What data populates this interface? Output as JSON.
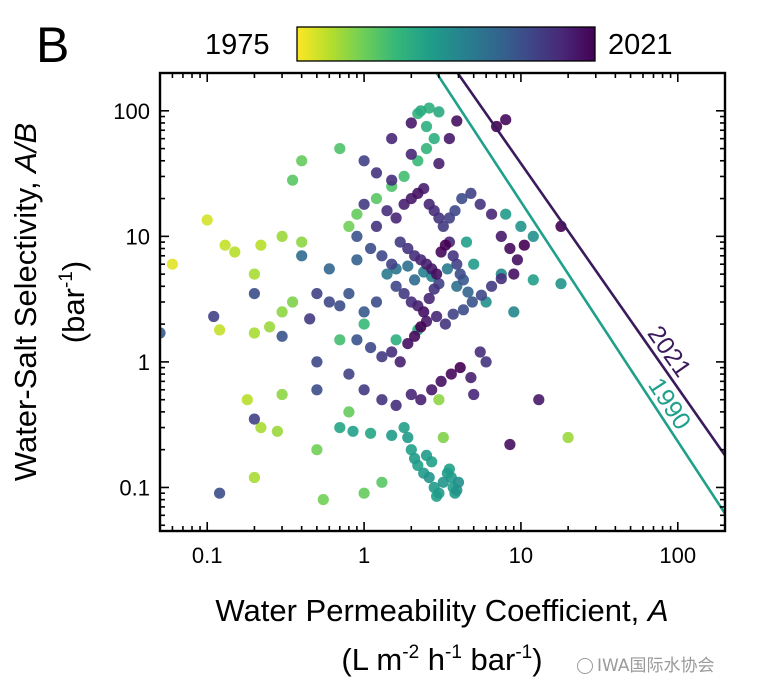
{
  "panel_label": "B",
  "watermark": "IWA国际水协会",
  "chart_data": {
    "type": "scatter",
    "title": "",
    "xlabel_parts": {
      "main": "Water Permeability Coefficient, ",
      "italic": "A"
    },
    "xlabel_units": {
      "a": "(L m",
      "b": "-2",
      "c": " h",
      "d": "-1",
      "e": " bar",
      "f": "-1",
      "g": ")"
    },
    "ylabel_parts": {
      "main": "Water-Salt Selectivity, ",
      "italic": "A/B"
    },
    "ylabel_units": {
      "a": "(bar",
      "b": "-1",
      "c": ")"
    },
    "x_scale": "log",
    "y_scale": "log",
    "xlim": [
      0.05,
      200
    ],
    "ylim": [
      0.045,
      200
    ],
    "x_ticks": [
      0.1,
      1,
      10,
      100
    ],
    "x_tick_labels": [
      "0.1",
      "1",
      "10",
      "100"
    ],
    "y_ticks": [
      0.1,
      1,
      10,
      100
    ],
    "y_tick_labels": [
      "0.1",
      "1",
      "10",
      "100"
    ],
    "colorbar": {
      "min_label": "1975",
      "max_label": "2021",
      "min": 1975,
      "max": 2021,
      "colormap": "viridis-reversed"
    },
    "colormap_stops": [
      "#fde725",
      "#b5de2b",
      "#6ece58",
      "#35b779",
      "#1f9e89",
      "#26828e",
      "#31688e",
      "#3e4989",
      "#482878",
      "#440154"
    ],
    "upper_bounds": [
      {
        "name": "2021",
        "label": "2021",
        "color": "#3a1a5c",
        "x": [
          3.95,
          200
        ],
        "y": [
          200,
          0.18
        ]
      },
      {
        "name": "1990",
        "label": "1990",
        "color": "#20a08a",
        "x": [
          2.9,
          200
        ],
        "y": [
          200,
          0.062
        ]
      }
    ],
    "points": [
      [
        0.06,
        6.0,
        1977
      ],
      [
        0.1,
        13.5,
        1978
      ],
      [
        0.13,
        8.5,
        1979
      ],
      [
        0.15,
        7.5,
        1980
      ],
      [
        0.2,
        5.0,
        1981
      ],
      [
        0.22,
        8.5,
        1980
      ],
      [
        0.3,
        10.0,
        1982
      ],
      [
        0.4,
        9.0,
        1983
      ],
      [
        0.12,
        1.8,
        1979
      ],
      [
        0.2,
        1.7,
        1981
      ],
      [
        0.25,
        1.9,
        1982
      ],
      [
        0.3,
        2.5,
        1983
      ],
      [
        0.35,
        3.0,
        1984
      ],
      [
        0.18,
        0.5,
        1980
      ],
      [
        0.22,
        0.3,
        1981
      ],
      [
        0.28,
        0.28,
        1982
      ],
      [
        0.12,
        0.09,
        2010
      ],
      [
        0.2,
        0.12,
        1981
      ],
      [
        0.55,
        0.08,
        1985
      ],
      [
        1.0,
        0.09,
        1986
      ],
      [
        1.3,
        0.11,
        1987
      ],
      [
        0.8,
        0.4,
        1986
      ],
      [
        0.5,
        0.2,
        1985
      ],
      [
        0.3,
        0.55,
        1983
      ],
      [
        0.8,
        12.0,
        1985
      ],
      [
        0.9,
        15.0,
        1986
      ],
      [
        1.2,
        20.0,
        1987
      ],
      [
        1.5,
        25.0,
        1988
      ],
      [
        1.8,
        30.0,
        1989
      ],
      [
        2.2,
        40.0,
        1990
      ],
      [
        2.5,
        50.0,
        1991
      ],
      [
        2.8,
        60.0,
        1992
      ],
      [
        2.3,
        100.0,
        1993
      ],
      [
        2.6,
        105.0,
        1992
      ],
      [
        3.0,
        98.0,
        1993
      ],
      [
        2.2,
        95.0,
        1991
      ],
      [
        2.5,
        75.0,
        1992
      ],
      [
        0.7,
        50.0,
        1988
      ],
      [
        0.4,
        40.0,
        1986
      ],
      [
        0.35,
        28.0,
        1987
      ],
      [
        1.0,
        2.0,
        1990
      ],
      [
        1.6,
        1.5,
        1992
      ],
      [
        2.2,
        1.8,
        1993
      ],
      [
        0.7,
        1.5,
        1989
      ],
      [
        0.7,
        0.3,
        1994
      ],
      [
        0.85,
        0.28,
        1995
      ],
      [
        1.1,
        0.27,
        1994
      ],
      [
        1.5,
        0.26,
        1996
      ],
      [
        1.8,
        0.3,
        1995
      ],
      [
        1.9,
        0.25,
        1996
      ],
      [
        2.0,
        0.2,
        1995
      ],
      [
        2.1,
        0.17,
        1996
      ],
      [
        2.2,
        0.15,
        1995
      ],
      [
        2.4,
        0.13,
        1996
      ],
      [
        2.6,
        0.12,
        1997
      ],
      [
        2.8,
        0.1,
        1996
      ],
      [
        2.9,
        0.085,
        1995
      ],
      [
        3.0,
        0.09,
        1996
      ],
      [
        3.2,
        0.11,
        1997
      ],
      [
        3.4,
        0.13,
        1996
      ],
      [
        3.5,
        0.14,
        1995
      ],
      [
        3.6,
        0.12,
        1996
      ],
      [
        3.7,
        0.1,
        1995
      ],
      [
        3.8,
        0.09,
        1996
      ],
      [
        3.9,
        0.095,
        1997
      ],
      [
        4.0,
        0.11,
        1998
      ],
      [
        2.5,
        0.18,
        1996
      ],
      [
        2.7,
        0.16,
        1995
      ],
      [
        4.5,
        9.0,
        1995
      ],
      [
        5.0,
        6.0,
        1996
      ],
      [
        6.0,
        3.0,
        1998
      ],
      [
        7.5,
        5.0,
        1999
      ],
      [
        9.0,
        2.5,
        2000
      ],
      [
        10.0,
        12.0,
        1997
      ],
      [
        12.0,
        10.0,
        1998
      ],
      [
        20.0,
        0.25,
        1982
      ],
      [
        3.2,
        0.25,
        1984
      ],
      [
        3.0,
        0.5,
        1983
      ],
      [
        12.0,
        4.5,
        1995
      ],
      [
        18.0,
        4.2,
        1997
      ],
      [
        8.0,
        15.0,
        1996
      ],
      [
        1.0,
        40.0,
        2012
      ],
      [
        1.2,
        32.0,
        2014
      ],
      [
        1.5,
        28.0,
        2015
      ],
      [
        2.0,
        45.0,
        2016
      ],
      [
        3.0,
        38.0,
        2017
      ],
      [
        3.5,
        60.0,
        2018
      ],
      [
        3.9,
        83.0,
        2019
      ],
      [
        2.0,
        80.0,
        2018
      ],
      [
        1.5,
        60.0,
        2016
      ],
      [
        1.0,
        18.0,
        2013
      ],
      [
        1.2,
        12.0,
        2014
      ],
      [
        1.4,
        16.0,
        2015
      ],
      [
        1.6,
        14.0,
        2016
      ],
      [
        1.8,
        18.0,
        2017
      ],
      [
        2.0,
        20.0,
        2018
      ],
      [
        2.2,
        22.0,
        2019
      ],
      [
        2.4,
        24.0,
        2017
      ],
      [
        2.6,
        18.0,
        2016
      ],
      [
        2.8,
        16.0,
        2015
      ],
      [
        3.0,
        14.0,
        2014
      ],
      [
        3.2,
        12.0,
        2013
      ],
      [
        3.5,
        14.0,
        2012
      ],
      [
        3.8,
        16.0,
        2011
      ],
      [
        4.2,
        20.0,
        2010
      ],
      [
        4.8,
        22.0,
        2012
      ],
      [
        5.5,
        18.0,
        2014
      ],
      [
        6.5,
        15.0,
        2016
      ],
      [
        7.5,
        10.0,
        2018
      ],
      [
        8.5,
        8.0,
        2020
      ],
      [
        9.0,
        5.0,
        2019
      ],
      [
        8.0,
        85.0,
        2020
      ],
      [
        7.0,
        75.0,
        2021
      ],
      [
        18.0,
        12.0,
        2021
      ],
      [
        0.9,
        10.0,
        2009
      ],
      [
        1.1,
        8.0,
        2010
      ],
      [
        1.3,
        7.0,
        2011
      ],
      [
        1.5,
        6.0,
        2012
      ],
      [
        1.7,
        9.0,
        2013
      ],
      [
        1.9,
        8.0,
        2014
      ],
      [
        2.1,
        7.0,
        2015
      ],
      [
        2.3,
        6.5,
        2016
      ],
      [
        2.5,
        6.0,
        2017
      ],
      [
        2.7,
        5.5,
        2018
      ],
      [
        2.9,
        5.0,
        2019
      ],
      [
        3.1,
        7.5,
        2020
      ],
      [
        3.3,
        8.5,
        2021
      ],
      [
        3.5,
        9.0,
        2016
      ],
      [
        3.7,
        7.0,
        2014
      ],
      [
        3.9,
        6.0,
        2012
      ],
      [
        4.1,
        5.0,
        2010
      ],
      [
        4.3,
        4.5,
        2008
      ],
      [
        1.6,
        4.0,
        2011
      ],
      [
        1.8,
        3.5,
        2013
      ],
      [
        2.0,
        3.0,
        2015
      ],
      [
        2.2,
        2.8,
        2017
      ],
      [
        2.4,
        2.5,
        2019
      ],
      [
        2.6,
        3.2,
        2016
      ],
      [
        2.8,
        3.8,
        2014
      ],
      [
        3.0,
        4.2,
        2012
      ],
      [
        1.2,
        3.0,
        2010
      ],
      [
        1.0,
        2.5,
        2008
      ],
      [
        0.8,
        3.5,
        2009
      ],
      [
        0.7,
        2.8,
        2010
      ],
      [
        0.6,
        3.0,
        2011
      ],
      [
        0.5,
        3.5,
        2012
      ],
      [
        0.45,
        2.2,
        2013
      ],
      [
        0.11,
        2.3,
        2012
      ],
      [
        0.2,
        3.5,
        2010
      ],
      [
        0.05,
        1.7,
        2008
      ],
      [
        0.3,
        1.6,
        2009
      ],
      [
        0.5,
        1.0,
        2011
      ],
      [
        0.8,
        0.8,
        2012
      ],
      [
        1.0,
        0.6,
        2013
      ],
      [
        1.3,
        0.5,
        2014
      ],
      [
        1.6,
        0.45,
        2015
      ],
      [
        2.0,
        0.55,
        2016
      ],
      [
        2.3,
        0.5,
        2017
      ],
      [
        2.7,
        0.6,
        2018
      ],
      [
        3.1,
        0.7,
        2019
      ],
      [
        3.6,
        0.8,
        2020
      ],
      [
        4.1,
        0.9,
        2021
      ],
      [
        4.8,
        0.75,
        2017
      ],
      [
        5.0,
        0.55,
        2016
      ],
      [
        5.5,
        1.2,
        2015
      ],
      [
        6.0,
        1.0,
        2014
      ],
      [
        13.0,
        0.5,
        2018
      ],
      [
        8.5,
        0.22,
        2019
      ],
      [
        0.2,
        0.35,
        2012
      ],
      [
        0.5,
        0.6,
        2010
      ],
      [
        0.9,
        1.5,
        2009
      ],
      [
        1.1,
        1.3,
        2011
      ],
      [
        1.3,
        1.1,
        2013
      ],
      [
        1.5,
        1.2,
        2015
      ],
      [
        1.7,
        1.0,
        2017
      ],
      [
        1.9,
        1.4,
        2019
      ],
      [
        2.1,
        1.6,
        2020
      ],
      [
        2.3,
        1.9,
        2021
      ],
      [
        2.5,
        2.1,
        2018
      ],
      [
        2.9,
        2.3,
        2016
      ],
      [
        3.3,
        2.0,
        2014
      ],
      [
        3.7,
        2.4,
        2012
      ],
      [
        4.3,
        2.6,
        2010
      ],
      [
        4.9,
        3.0,
        2009
      ],
      [
        5.6,
        3.4,
        2011
      ],
      [
        6.5,
        4.0,
        2013
      ],
      [
        7.5,
        4.6,
        2015
      ],
      [
        9.5,
        6.5,
        2019
      ],
      [
        10.5,
        8.5,
        2021
      ],
      [
        0.4,
        7.0,
        2005
      ],
      [
        0.6,
        5.5,
        2006
      ],
      [
        0.9,
        6.5,
        2007
      ],
      [
        1.4,
        5.0,
        2002
      ],
      [
        1.6,
        5.5,
        2003
      ],
      [
        1.9,
        5.8,
        2004
      ],
      [
        2.1,
        4.5,
        2005
      ],
      [
        2.4,
        5.2,
        2001
      ],
      [
        2.7,
        4.8,
        2000
      ],
      [
        3.4,
        5.5,
        2002
      ],
      [
        3.9,
        4.0,
        2004
      ],
      [
        4.6,
        3.6,
        2006
      ]
    ]
  }
}
